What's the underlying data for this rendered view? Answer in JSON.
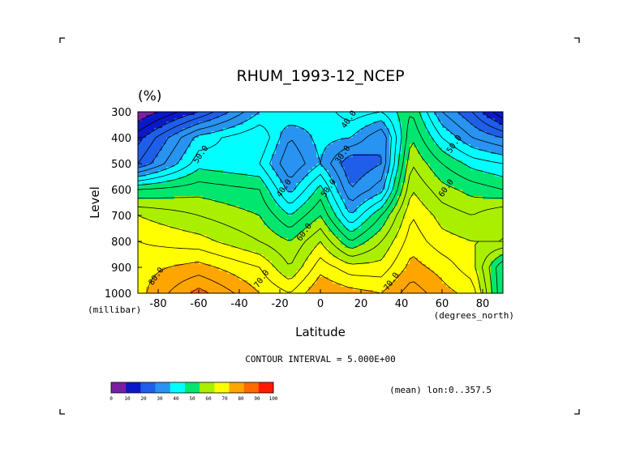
{
  "chart_data": {
    "type": "contour",
    "title": "RHUM_1993-12_NCEP",
    "units": "(%)",
    "xlabel": "Latitude",
    "x_units_label": "(degrees_north)",
    "ylabel": "Level",
    "y_units_label": "(millibar)",
    "xlim": [
      -90,
      90
    ],
    "ylim": [
      300,
      1000
    ],
    "x_ticks": [
      "-80",
      "-60",
      "-40",
      "-20",
      "0",
      "20",
      "40",
      "60",
      "80"
    ],
    "x_tick_values": [
      -80,
      -60,
      -40,
      -20,
      0,
      20,
      40,
      60,
      80
    ],
    "y_ticks": [
      "300",
      "400",
      "500",
      "600",
      "700",
      "800",
      "900",
      "1000"
    ],
    "y_tick_values": [
      300,
      400,
      500,
      600,
      700,
      800,
      900,
      1000
    ],
    "contour_interval_text": "CONTOUR INTERVAL = 5.000E+00",
    "footnote": "(mean) lon:0..357.5",
    "contour_labels": [
      {
        "text": "40.0",
        "lat": 15,
        "lev": 335
      },
      {
        "text": "50.0",
        "lat": -58,
        "lev": 470
      },
      {
        "text": "30.0",
        "lat": 12,
        "lev": 470
      },
      {
        "text": "40.0",
        "lat": -17,
        "lev": 600
      },
      {
        "text": "50.0",
        "lat": 5,
        "lev": 600
      },
      {
        "text": "60.0",
        "lat": -7,
        "lev": 770
      },
      {
        "text": "50.0",
        "lat": 67,
        "lev": 430
      },
      {
        "text": "60.0",
        "lat": 63,
        "lev": 600
      },
      {
        "text": "70.0",
        "lat": -28,
        "lev": 950
      },
      {
        "text": "70.0",
        "lat": 36,
        "lev": 960
      },
      {
        "text": "80.0",
        "lat": -80,
        "lev": 940
      }
    ],
    "colorbar": {
      "labels": [
        "0",
        "10",
        "20",
        "30",
        "40",
        "50",
        "60",
        "70",
        "80",
        "90",
        "100"
      ],
      "colors": [
        "#7b1fa2",
        "#0a19c8",
        "#1e5ee8",
        "#2893f0",
        "#00ffff",
        "#00e66e",
        "#aaee00",
        "#ffff00",
        "#ffa500",
        "#ff6a00",
        "#ff1a00"
      ]
    },
    "grid_lat": [
      -90,
      -60,
      -30,
      -15,
      0,
      15,
      30,
      45,
      60,
      75,
      90
    ],
    "grid_lev": [
      300,
      400,
      500,
      600,
      700,
      800,
      900,
      1000
    ],
    "grid_values": [
      [
        5,
        20,
        40,
        45,
        42,
        48,
        45,
        55,
        35,
        25,
        10
      ],
      [
        18,
        42,
        50,
        35,
        42,
        40,
        30,
        60,
        45,
        35,
        30
      ],
      [
        25,
        48,
        45,
        30,
        40,
        25,
        30,
        65,
        55,
        48,
        45
      ],
      [
        55,
        58,
        55,
        38,
        52,
        30,
        38,
        70,
        62,
        58,
        55
      ],
      [
        70,
        65,
        60,
        50,
        60,
        40,
        55,
        75,
        68,
        65,
        70
      ],
      [
        75,
        72,
        65,
        60,
        70,
        55,
        65,
        78,
        72,
        70,
        70
      ],
      [
        78,
        82,
        75,
        65,
        78,
        72,
        72,
        82,
        78,
        72,
        50
      ],
      [
        78,
        92,
        80,
        75,
        85,
        82,
        80,
        88,
        82,
        78,
        50
      ]
    ]
  }
}
